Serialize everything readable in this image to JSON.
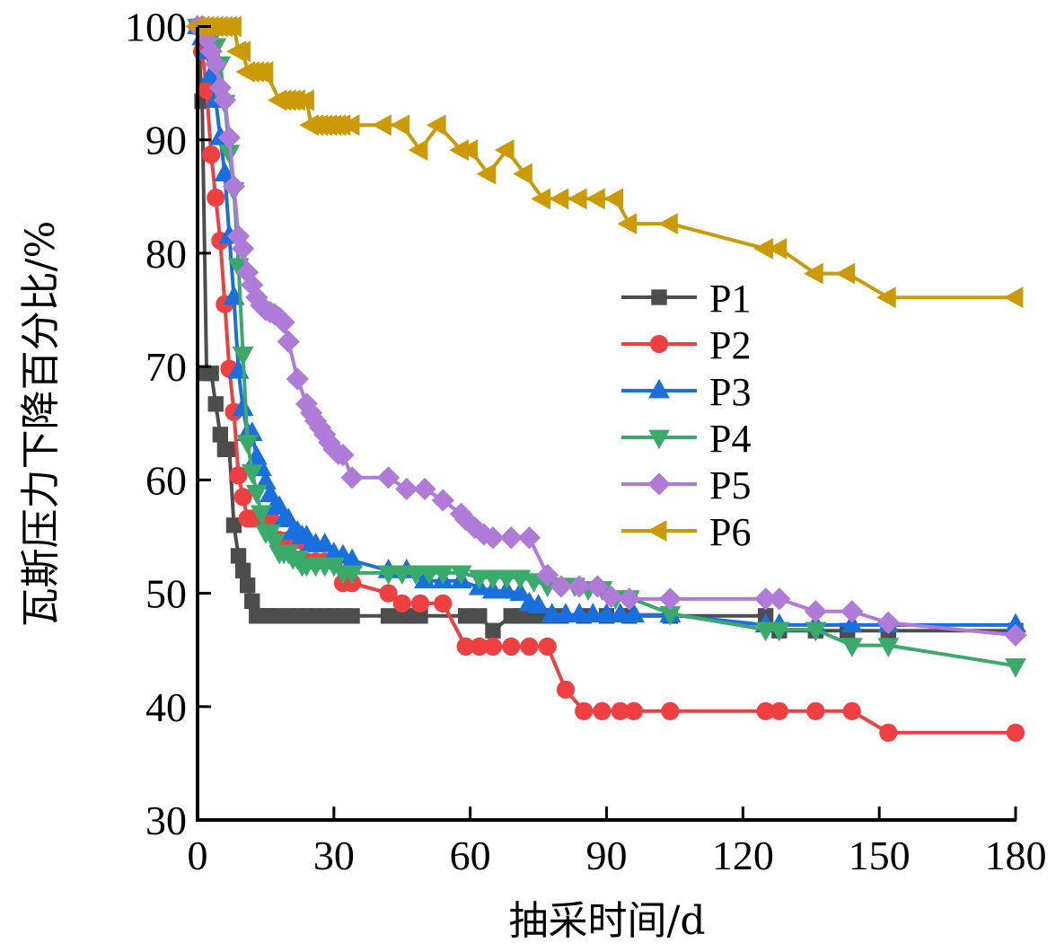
{
  "chart_data": {
    "type": "line",
    "title": "",
    "xlabel": "抽采时间/d",
    "ylabel": "瓦斯压力下降百分比/%",
    "xlim": [
      0,
      180
    ],
    "ylim": [
      30,
      100
    ],
    "xticks": [
      "0",
      "30",
      "60",
      "90",
      "120",
      "150",
      "180"
    ],
    "yticks": [
      "30",
      "40",
      "50",
      "60",
      "70",
      "80",
      "90",
      "100"
    ],
    "grid": false,
    "legend_position": "center-right",
    "series": [
      {
        "name": "P1",
        "color": "#4d4d4d",
        "marker": "square",
        "x": [
          0,
          1,
          2,
          3,
          4,
          5,
          6,
          7,
          8,
          9,
          10,
          11,
          12,
          13,
          14,
          15,
          16,
          18,
          20,
          22,
          24,
          26,
          28,
          30,
          32,
          34,
          42,
          45,
          47,
          49,
          59,
          62,
          65,
          69,
          71,
          73,
          75,
          77,
          80,
          85,
          90,
          95,
          104,
          125,
          128,
          136,
          143,
          152,
          180
        ],
        "y": [
          100,
          93.4,
          69.4,
          69.4,
          66.7,
          64,
          62.7,
          62.7,
          56,
          53.3,
          52,
          50.7,
          49.3,
          48,
          48,
          48,
          48,
          48,
          48,
          48,
          48,
          48,
          48,
          48,
          48,
          48,
          48,
          48,
          48,
          48,
          48,
          48,
          46.7,
          48,
          48,
          48,
          48,
          48,
          48,
          48,
          48,
          48,
          48,
          48,
          46.7,
          46.7,
          46.7,
          46.7,
          46.7
        ]
      },
      {
        "name": "P2",
        "color": "#ee4040",
        "marker": "circle",
        "x": [
          0,
          1,
          2,
          3,
          4,
          5,
          6,
          7,
          8,
          9,
          10,
          11,
          12,
          13,
          14,
          16,
          18,
          20,
          22,
          24,
          26,
          28,
          30,
          32,
          34,
          42,
          45,
          49,
          54,
          59,
          62,
          65,
          69,
          73,
          77,
          81,
          85,
          89,
          93,
          96,
          104,
          125,
          128,
          136,
          144,
          152,
          180
        ],
        "y": [
          100,
          97.8,
          94.4,
          88.7,
          84.9,
          81.1,
          75.5,
          69.8,
          66,
          60.4,
          58.5,
          56.6,
          56.6,
          56.6,
          56.6,
          56.6,
          54.7,
          54.7,
          54.7,
          52.8,
          52.8,
          52.8,
          52.8,
          50.9,
          50.9,
          50,
          49.1,
          49.1,
          49.1,
          45.3,
          45.3,
          45.3,
          45.3,
          45.3,
          45.3,
          41.5,
          39.6,
          39.6,
          39.6,
          39.6,
          39.6,
          39.6,
          39.6,
          39.6,
          39.6,
          37.7,
          37.7
        ]
      },
      {
        "name": "P3",
        "color": "#1a6fdf",
        "marker": "triangle-up",
        "x": [
          0,
          1,
          2,
          3,
          4,
          5,
          6,
          7,
          8,
          9,
          10,
          11,
          12,
          13,
          14,
          15,
          16,
          17,
          18,
          19,
          20,
          21,
          22,
          23,
          24,
          25,
          26,
          28,
          30,
          32,
          34,
          42,
          46,
          50,
          54,
          58,
          62,
          65,
          68,
          71,
          73,
          75,
          78,
          81,
          84,
          87,
          90,
          93,
          96,
          104,
          125,
          128,
          136,
          144,
          152,
          180
        ],
        "y": [
          100,
          99,
          97.8,
          95.7,
          93.5,
          90.2,
          87,
          81.5,
          76.1,
          69.6,
          66.3,
          64.1,
          64.1,
          62,
          61,
          59.8,
          58.7,
          57.6,
          57.6,
          56.5,
          56.5,
          55.4,
          55.4,
          55,
          55,
          54.3,
          54.3,
          54.3,
          53.5,
          53.3,
          52.9,
          52,
          52,
          51.1,
          51.1,
          51.1,
          50.5,
          50.2,
          50.2,
          50,
          49.1,
          48.9,
          48.1,
          48.1,
          48.1,
          48.1,
          48.1,
          48.1,
          48.1,
          48.1,
          47.2,
          47.2,
          47.2,
          47.2,
          47.2,
          47.2
        ]
      },
      {
        "name": "P4",
        "color": "#3aaa6a",
        "marker": "triangle-down",
        "x": [
          0,
          1,
          2,
          3,
          4,
          5,
          6,
          7,
          8,
          9,
          10,
          11,
          12,
          13,
          14,
          15,
          16,
          17,
          18,
          19,
          20,
          21,
          22,
          23,
          24,
          26,
          28,
          30,
          32,
          34,
          42,
          45,
          48,
          51,
          54,
          58,
          62,
          65,
          68,
          71,
          74,
          77,
          80,
          83,
          86,
          89,
          92,
          95,
          104,
          125,
          128,
          136,
          144,
          152,
          180
        ],
        "y": [
          100,
          100,
          99.6,
          98.9,
          98.3,
          96.7,
          93.3,
          88.9,
          85.6,
          78.9,
          71.1,
          63.3,
          60.7,
          58.9,
          57.1,
          55.4,
          55.4,
          54.6,
          53.6,
          53.6,
          53.6,
          53.1,
          53.1,
          52.5,
          52.5,
          52.5,
          52.5,
          52.5,
          51.8,
          51.8,
          51.8,
          51.8,
          51.8,
          51.8,
          51.8,
          51.8,
          51.4,
          51.4,
          51.4,
          51.4,
          51.1,
          50.7,
          50.7,
          50.7,
          50.4,
          50.4,
          49.6,
          49.6,
          48.2,
          46.8,
          46.8,
          46.8,
          45.4,
          45.4,
          43.6
        ]
      },
      {
        "name": "P5",
        "color": "#b07ad9",
        "marker": "diamond",
        "x": [
          0,
          1,
          2,
          3,
          4,
          5,
          6,
          7,
          8,
          9,
          10,
          11,
          12,
          13,
          14,
          15,
          16,
          17,
          18,
          19,
          20,
          22,
          24,
          25,
          26,
          27,
          28,
          29,
          30,
          31,
          32,
          34,
          42,
          46,
          50,
          54,
          58,
          59,
          61,
          63,
          65,
          69,
          73,
          77,
          80,
          84,
          88,
          91,
          95,
          104,
          125,
          128,
          136,
          144,
          152,
          180
        ],
        "y": [
          100,
          100,
          98.9,
          97.8,
          96.7,
          94.6,
          93.5,
          90.2,
          85.9,
          81.5,
          80.4,
          78.3,
          77.2,
          76.1,
          75.4,
          75,
          74.8,
          74.6,
          74.3,
          73.9,
          72.2,
          68.9,
          66.7,
          65.9,
          65.2,
          64.6,
          64,
          63.3,
          62.7,
          62.3,
          62.2,
          60.2,
          60.2,
          59.2,
          59.2,
          58.2,
          57,
          56.5,
          55.8,
          55.2,
          54.9,
          54.9,
          54.9,
          51.6,
          50.6,
          50.6,
          50.6,
          49.7,
          49.5,
          49.5,
          49.5,
          49.5,
          48.4,
          48.4,
          47.4,
          46.3
        ]
      },
      {
        "name": "P6",
        "color": "#cc9a06",
        "marker": "triangle-left",
        "x": [
          0,
          1,
          2,
          3,
          4,
          5,
          6,
          7,
          8,
          9,
          10,
          11,
          12,
          13,
          14,
          15,
          18,
          19,
          20,
          21,
          22,
          24,
          25,
          26,
          27,
          28,
          29,
          30,
          31,
          32,
          34,
          41,
          45,
          49,
          53,
          58,
          60,
          64,
          68,
          72,
          76,
          80,
          84,
          88,
          92,
          95,
          104,
          125,
          128,
          136,
          143,
          152,
          180
        ],
        "y": [
          100,
          100,
          100,
          100,
          100,
          100,
          100,
          100,
          100,
          97.8,
          97.8,
          96,
          96,
          96,
          96,
          96,
          93.5,
          93.5,
          93.5,
          93.5,
          93.5,
          93.5,
          91.3,
          91.3,
          91.3,
          91.3,
          91.3,
          91.3,
          91.3,
          91.3,
          91.3,
          91.3,
          91.3,
          89.1,
          91.3,
          89.1,
          89.1,
          87,
          89.1,
          87,
          84.8,
          84.8,
          84.8,
          84.8,
          84.8,
          82.6,
          82.6,
          80.4,
          80.4,
          78.2,
          78.2,
          76.1,
          76.1
        ]
      }
    ]
  }
}
